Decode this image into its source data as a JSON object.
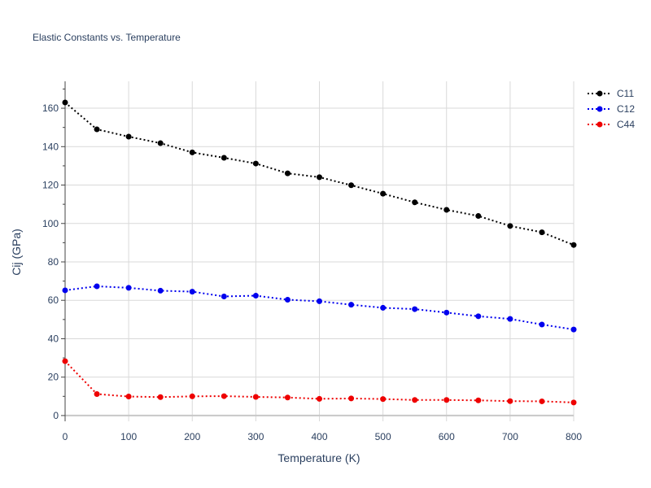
{
  "chart_data": {
    "type": "line",
    "title": "Elastic Constants vs. Temperature",
    "xlabel": "Temperature (K)",
    "ylabel": "Cij (GPa)",
    "xlim": [
      0,
      800
    ],
    "ylim": [
      -3,
      174
    ],
    "xticks": [
      0,
      100,
      200,
      300,
      400,
      500,
      600,
      700,
      800
    ],
    "yticks": [
      0,
      20,
      40,
      60,
      80,
      100,
      120,
      140,
      160
    ],
    "xtick_labels": [
      "0",
      "100",
      "200",
      "300",
      "400",
      "500",
      "600",
      "700",
      "800"
    ],
    "ytick_labels": [
      "0",
      "20",
      "40",
      "60",
      "80",
      "100",
      "120",
      "140",
      "160"
    ],
    "x": [
      0,
      50,
      100,
      150,
      200,
      250,
      300,
      350,
      400,
      450,
      500,
      550,
      600,
      650,
      700,
      750,
      800
    ],
    "grid": true,
    "legend_position": "top-right",
    "line_style": "dotted",
    "series": [
      {
        "name": "C11",
        "color": "#000000",
        "values": [
          163,
          149,
          145.2,
          141.8,
          137,
          134.2,
          131.2,
          126.1,
          124.1,
          119.9,
          115.5,
          111,
          107.1,
          103.9,
          98.7,
          95.4,
          88.8
        ]
      },
      {
        "name": "C12",
        "color": "#0000ee",
        "values": [
          65.2,
          67.3,
          66.5,
          65,
          64.5,
          62,
          62.4,
          60.3,
          59.5,
          57.7,
          56.1,
          55.4,
          53.6,
          51.7,
          50.3,
          47.4,
          44.8
        ]
      },
      {
        "name": "C44",
        "color": "#ee0000",
        "values": [
          28.3,
          11.2,
          9.9,
          9.6,
          10,
          10.1,
          9.7,
          9.4,
          8.7,
          8.9,
          8.6,
          8.1,
          8.1,
          7.9,
          7.5,
          7.4,
          6.8
        ]
      }
    ]
  }
}
